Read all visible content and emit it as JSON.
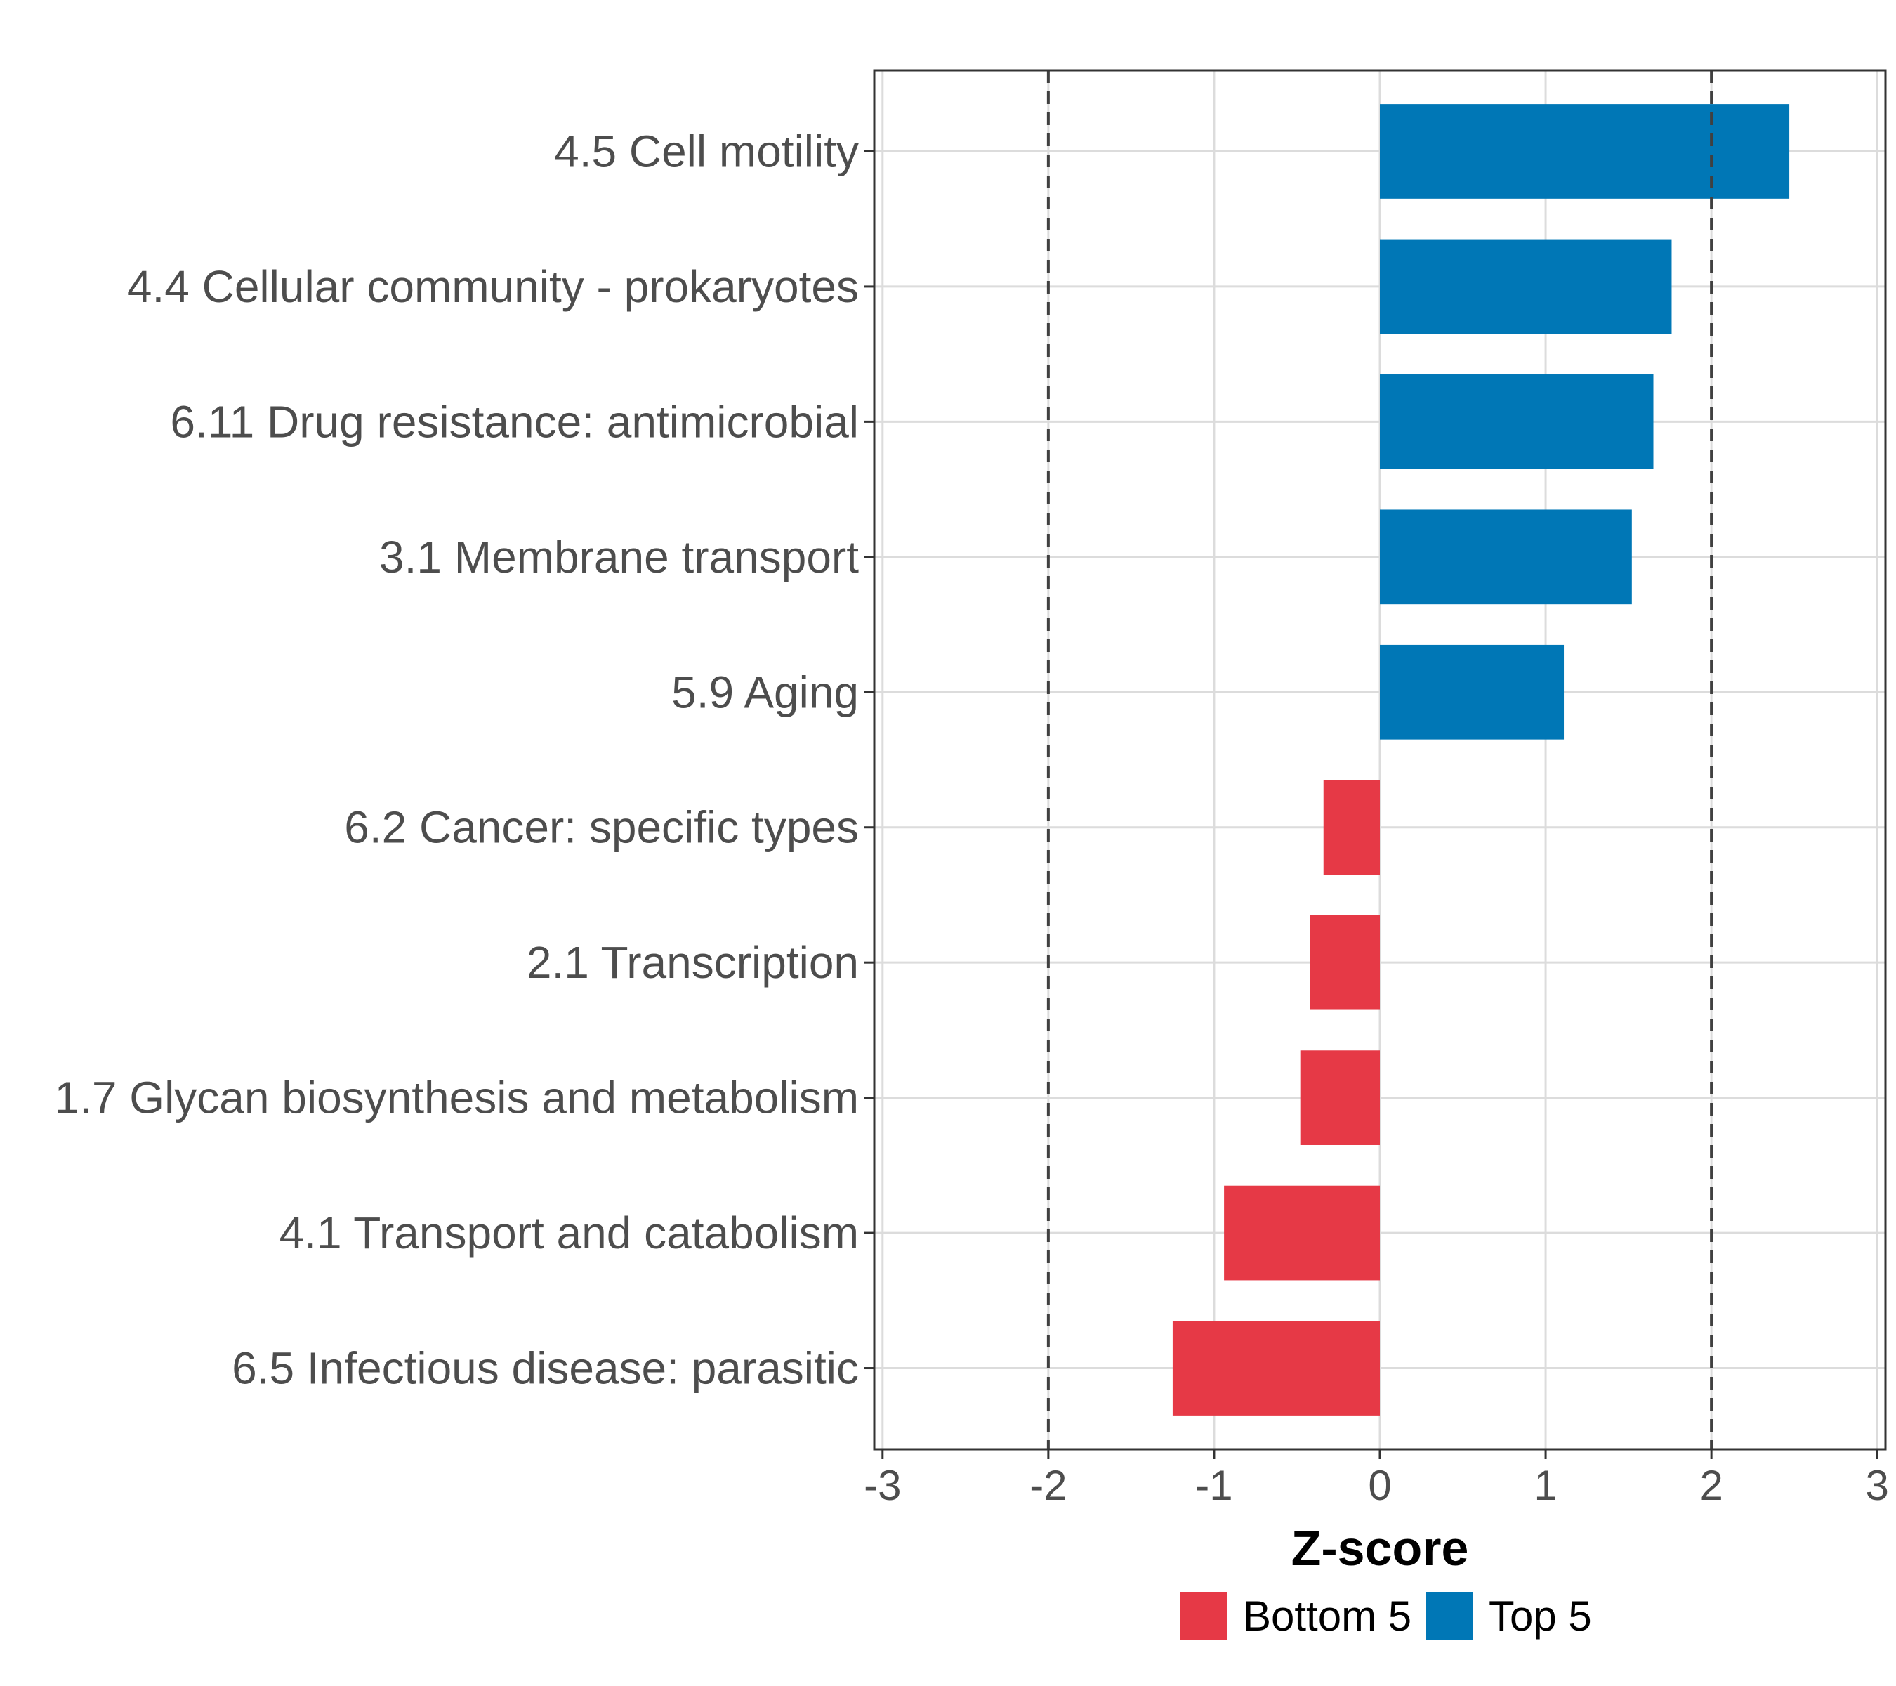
{
  "chart_data": {
    "type": "bar",
    "orientation": "horizontal",
    "categories": [
      "4.5 Cell motility",
      "4.4 Cellular community - prokaryotes",
      "6.11 Drug resistance: antimicrobial",
      "3.1 Membrane transport",
      "5.9 Aging",
      "6.2 Cancer: specific types",
      "2.1 Transcription",
      "1.7 Glycan biosynthesis and metabolism",
      "4.1 Transport and catabolism",
      "6.5 Infectious disease: parasitic"
    ],
    "values": [
      2.47,
      1.76,
      1.65,
      1.52,
      1.11,
      -0.34,
      -0.42,
      -0.48,
      -0.94,
      -1.25
    ],
    "groups": [
      "Top 5",
      "Top 5",
      "Top 5",
      "Top 5",
      "Top 5",
      "Bottom 5",
      "Bottom 5",
      "Bottom 5",
      "Bottom 5",
      "Bottom 5"
    ],
    "xlabel": "Z-score",
    "xlim": [
      -3.05,
      3.05
    ],
    "xticks": [
      -3,
      -2,
      -1,
      0,
      1,
      2,
      3
    ],
    "xtick_labels": [
      "-3",
      "-2",
      "-1",
      "0",
      "1",
      "2",
      "3"
    ],
    "reference_lines": [
      -2,
      2
    ],
    "grid": true,
    "legend": {
      "position": "bottom",
      "items": [
        {
          "label": "Bottom 5",
          "color": "#e63946"
        },
        {
          "label": "Top 5",
          "color": "#0077b6"
        }
      ]
    },
    "colors": {
      "Top 5": "#0077b6",
      "Bottom 5": "#e63946"
    }
  }
}
